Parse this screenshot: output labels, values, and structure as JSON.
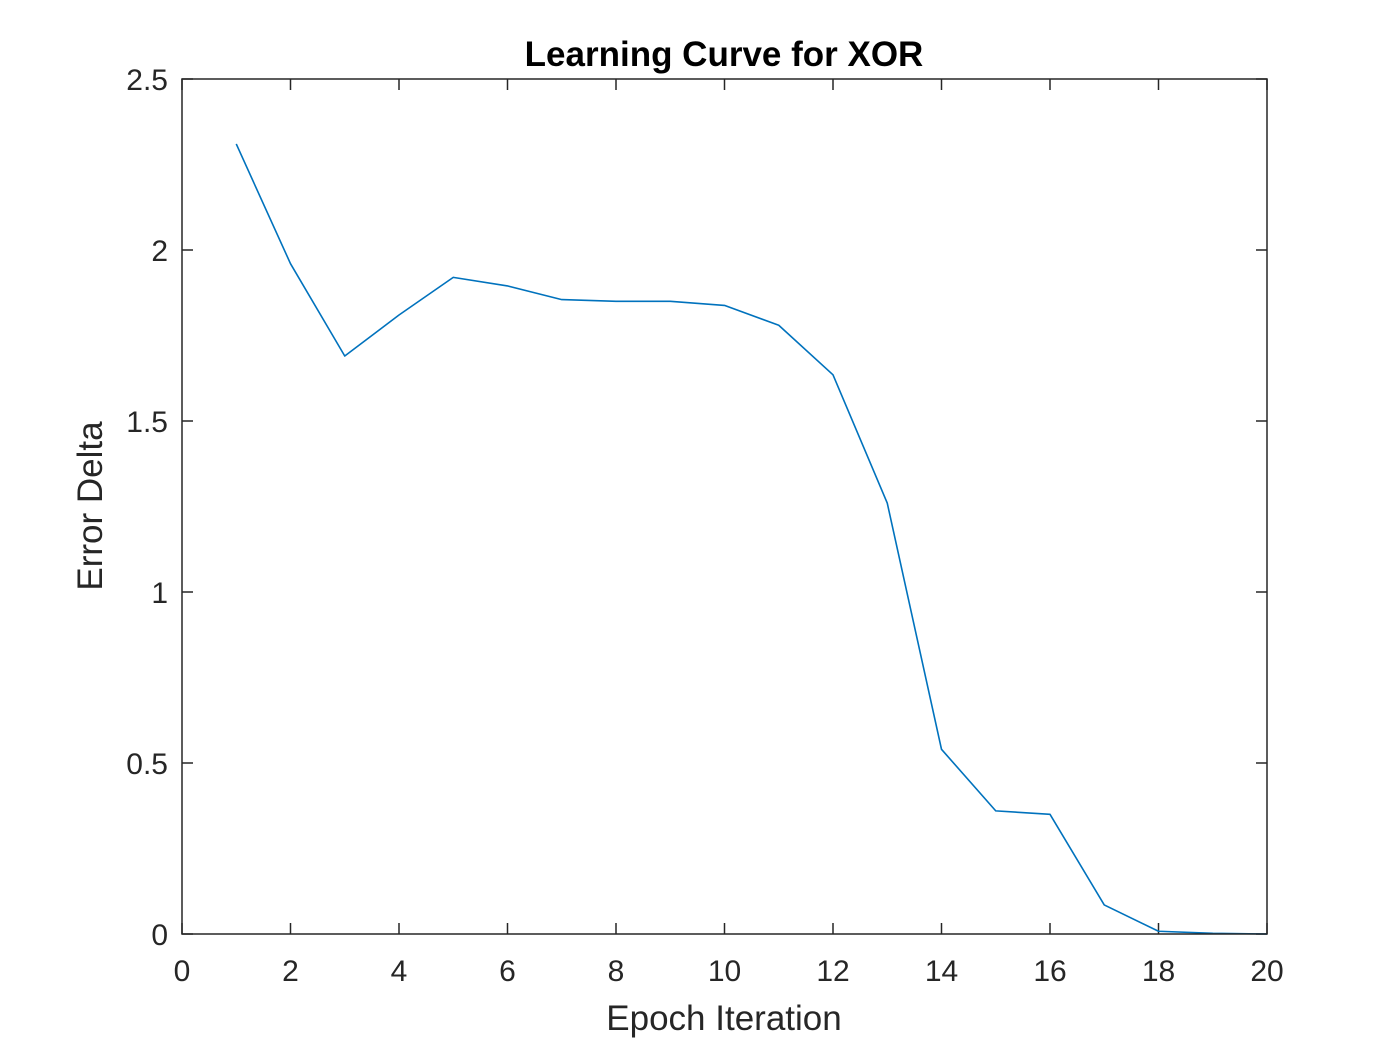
{
  "chart_data": {
    "type": "line",
    "title": "Learning Curve for XOR",
    "xlabel": "Epoch Iteration",
    "ylabel": "Error Delta",
    "xlim": [
      0,
      20
    ],
    "ylim": [
      0,
      2.5
    ],
    "xticks": [
      0,
      2,
      4,
      6,
      8,
      10,
      12,
      14,
      16,
      18,
      20
    ],
    "xtick_labels": [
      "0",
      "2",
      "4",
      "6",
      "8",
      "10",
      "12",
      "14",
      "16",
      "18",
      "20"
    ],
    "yticks": [
      0,
      0.5,
      1,
      1.5,
      2,
      2.5
    ],
    "ytick_labels": [
      "0",
      "0.5",
      "1",
      "1.5",
      "2",
      "2.5"
    ],
    "grid": false,
    "legend": "none",
    "series": [
      {
        "color": "#0072BD",
        "x": [
          1,
          2,
          3,
          4,
          5,
          6,
          7,
          8,
          9,
          10,
          11,
          12,
          13,
          14,
          15,
          16,
          17,
          18,
          19,
          20
        ],
        "y": [
          2.31,
          1.96,
          1.69,
          1.81,
          1.92,
          1.895,
          1.855,
          1.85,
          1.85,
          1.838,
          1.78,
          1.635,
          1.26,
          0.54,
          0.36,
          0.35,
          0.085,
          0.008,
          0.002,
          0.0
        ]
      }
    ]
  }
}
